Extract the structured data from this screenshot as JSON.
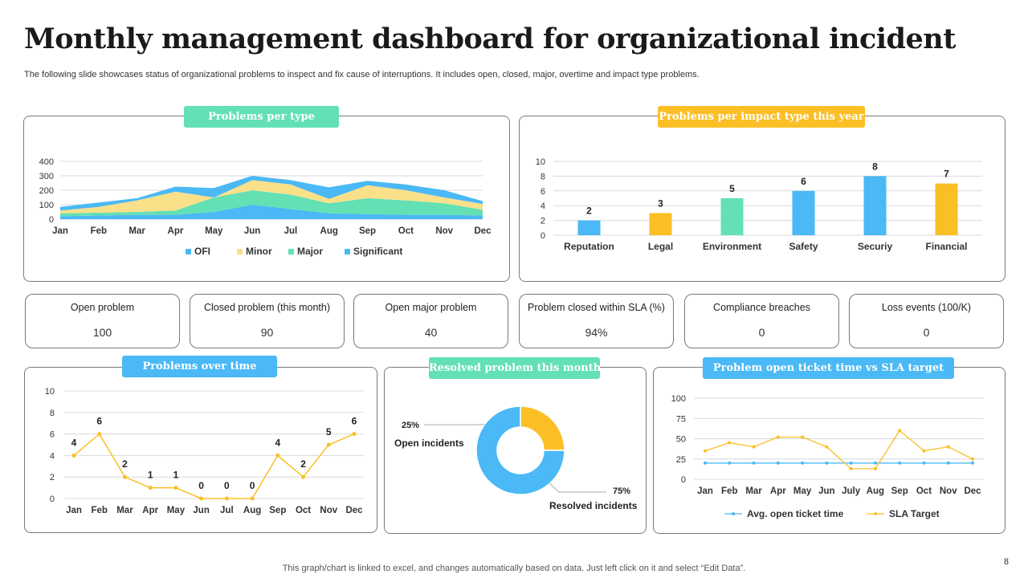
{
  "title": "Monthly management dashboard for organizational incident",
  "subtitle": "The following slide showcases status of organizational problems to inspect and fix cause of interruptions. It includes open, closed, major, overtime and impact type problems.",
  "footer": "This graph/chart is linked to excel,  and changes automatically based on data. Just left click on it and select “Edit Data”.",
  "page_number": "8",
  "colors": {
    "green": "#63e0b4",
    "yellow": "#fbbf26",
    "blue": "#4ab9f5",
    "light_yellow": "#fbe08a",
    "grid": "#d9d9d9"
  },
  "panels": {
    "problems_per_type": "Problems per type",
    "impact_type": "Problems per impact type this year",
    "over_time": "Problems over time",
    "resolved": "Resolved problem this month",
    "ticket_time": "Problem open ticket time vs SLA target"
  },
  "kpis": [
    {
      "label": "Open problem",
      "value": "100"
    },
    {
      "label": "Closed problem (this month)",
      "value": "90"
    },
    {
      "label": "Open major problem",
      "value": "40"
    },
    {
      "label": "Problem closed within SLA (%)",
      "value": "94%"
    },
    {
      "label": "Compliance breaches",
      "value": "0"
    },
    {
      "label": "Loss events (100/K)",
      "value": "0"
    }
  ],
  "chart_data": [
    {
      "id": "problems_per_type",
      "type": "area",
      "stacked": true,
      "categories": [
        "Jan",
        "Feb",
        "Mar",
        "Apr",
        "May",
        "Jun",
        "Jul",
        "Aug",
        "Sep",
        "Oct",
        "Nov",
        "Dec"
      ],
      "series": [
        {
          "name": "Significant",
          "color": "#4ab9f5",
          "values": [
            20,
            25,
            30,
            30,
            50,
            100,
            70,
            40,
            35,
            30,
            30,
            25
          ]
        },
        {
          "name": "Major",
          "color": "#63e0b4",
          "values": [
            20,
            20,
            20,
            30,
            100,
            100,
            100,
            70,
            110,
            100,
            80,
            40
          ]
        },
        {
          "name": "Minor",
          "color": "#fbe08a",
          "values": [
            20,
            40,
            80,
            130,
            0,
            70,
            70,
            30,
            90,
            70,
            40,
            40
          ]
        },
        {
          "name": "OFI",
          "color": "#4ab9f5",
          "values": [
            25,
            30,
            15,
            35,
            65,
            30,
            30,
            80,
            30,
            40,
            50,
            20
          ]
        }
      ],
      "legend_order": [
        "OFI",
        "Minor",
        "Major",
        "Significant"
      ],
      "ylim": [
        0,
        400
      ],
      "yticks": [
        0,
        100,
        200,
        300,
        400
      ],
      "legend": "bottom"
    },
    {
      "id": "impact_type",
      "type": "bar",
      "categories": [
        "Reputation",
        "Legal",
        "Environment",
        "Safety",
        "Securiy",
        "Financial"
      ],
      "values": [
        2,
        3,
        5,
        6,
        8,
        7
      ],
      "colors": [
        "#4ab9f5",
        "#fbbf26",
        "#63e0b4",
        "#4ab9f5",
        "#4ab9f5",
        "#fbbf26"
      ],
      "ylim": [
        0,
        10
      ],
      "yticks": [
        0,
        2,
        4,
        6,
        8,
        10
      ]
    },
    {
      "id": "over_time",
      "type": "line",
      "categories": [
        "Jan",
        "Feb",
        "Mar",
        "Apr",
        "May",
        "Jun",
        "Jul",
        "Aug",
        "Sep",
        "Oct",
        "Nov",
        "Dec"
      ],
      "values": [
        4,
        6,
        2,
        1,
        1,
        0,
        0,
        0,
        4,
        2,
        5,
        6
      ],
      "color": "#fbbf26",
      "ylim": [
        0,
        10
      ],
      "yticks": [
        0,
        2,
        4,
        6,
        8,
        10
      ]
    },
    {
      "id": "resolved",
      "type": "pie",
      "donut": true,
      "slices": [
        {
          "name": "Open incidents",
          "value": 25,
          "label": "25%",
          "color": "#fbbf26"
        },
        {
          "name": "Resolved incidents",
          "value": 75,
          "label": "75%",
          "color": "#4ab9f5"
        }
      ]
    },
    {
      "id": "ticket_time",
      "type": "line",
      "categories": [
        "Jan",
        "Feb",
        "Mar",
        "Apr",
        "May",
        "Jun",
        "July",
        "Aug",
        "Sep",
        "Oct",
        "Nov",
        "Dec"
      ],
      "series": [
        {
          "name": "Avg. open ticket time",
          "color": "#4ab9f5",
          "values": [
            20,
            20,
            20,
            20,
            20,
            20,
            20,
            20,
            20,
            20,
            20,
            20
          ]
        },
        {
          "name": "SLA Target",
          "color": "#fbbf26",
          "values": [
            35,
            45,
            40,
            52,
            52,
            40,
            13,
            13,
            60,
            35,
            40,
            25
          ]
        }
      ],
      "ylim": [
        0,
        100
      ],
      "yticks": [
        0,
        25,
        50,
        75,
        100
      ],
      "legend": "bottom"
    }
  ]
}
